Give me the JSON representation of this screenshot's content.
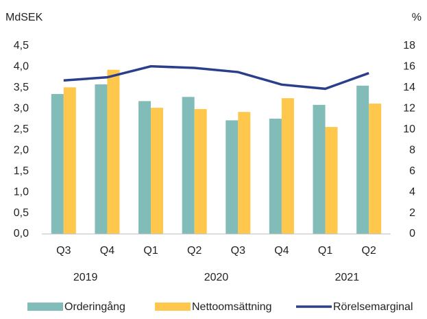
{
  "chart_data": {
    "type": "bar_line",
    "y_label": "MdSEK",
    "y2_label": "%",
    "categories": [
      "Q3",
      "Q4",
      "Q1",
      "Q2",
      "Q3",
      "Q4",
      "Q1",
      "Q2"
    ],
    "groups": [
      {
        "label": "2019",
        "span": 2
      },
      {
        "label": "2020",
        "span": 4
      },
      {
        "label": "2021",
        "span": 2
      }
    ],
    "series": [
      {
        "name": "Orderingång",
        "type": "bar",
        "color": "#82bcb9",
        "values": [
          3.35,
          3.58,
          3.18,
          3.28,
          2.72,
          2.76,
          3.09,
          3.55
        ]
      },
      {
        "name": "Nettoomsättning",
        "type": "bar",
        "color": "#ffc84c",
        "values": [
          3.51,
          3.93,
          3.02,
          2.99,
          2.92,
          3.25,
          2.56,
          3.12
        ]
      },
      {
        "name": "Rörelsemarginal",
        "type": "line",
        "axis": "y2",
        "color": "#2a3e8c",
        "values": [
          14.7,
          15.0,
          16.05,
          15.9,
          15.5,
          14.3,
          13.9,
          15.4
        ]
      }
    ],
    "ylim": [
      0,
      4.5
    ],
    "yticks": [
      {
        "value": 0,
        "label": "0,0"
      },
      {
        "value": 0.5,
        "label": "0,5"
      },
      {
        "value": 1,
        "label": "1,0"
      },
      {
        "value": 1.5,
        "label": "1,5"
      },
      {
        "value": 2,
        "label": "2,0"
      },
      {
        "value": 2.5,
        "label": "2,5"
      },
      {
        "value": 3,
        "label": "3,0"
      },
      {
        "value": 3.5,
        "label": "3,5"
      },
      {
        "value": 4,
        "label": "4,0"
      },
      {
        "value": 4.5,
        "label": "4,5"
      }
    ],
    "y2lim": [
      0,
      18
    ],
    "y2ticks": [
      0,
      2,
      4,
      6,
      8,
      10,
      12,
      14,
      16,
      18
    ],
    "grid": false,
    "legend": "bottom"
  }
}
